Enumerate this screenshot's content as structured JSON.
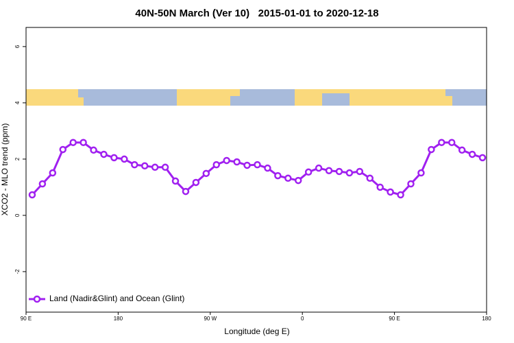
{
  "chart_data": {
    "type": "line",
    "title": "40N-50N March (Ver 10)   2015-01-01 to 2020-12-18",
    "xlabel": "Longitude (deg E)",
    "ylabel": "XCO2 - MLO trend (ppm)",
    "x": [
      96,
      106,
      116,
      126,
      136,
      146,
      156,
      166,
      176,
      186,
      196,
      206,
      216,
      226,
      236,
      246,
      256,
      266,
      276,
      286,
      296,
      306,
      316,
      326,
      336,
      346,
      356,
      366,
      376,
      386,
      396,
      406,
      416,
      426,
      436,
      446,
      456,
      466,
      476,
      486,
      496,
      506,
      516,
      526,
      536
    ],
    "series": [
      {
        "name": "Land (Nadir&Glint) and Ocean (Glint)",
        "color": "#a020f0",
        "values": [
          0.73,
          1.12,
          1.51,
          2.34,
          2.59,
          2.59,
          2.32,
          2.17,
          2.05,
          2.0,
          1.8,
          1.76,
          1.71,
          1.71,
          1.22,
          0.85,
          1.17,
          1.49,
          1.8,
          1.95,
          1.9,
          1.78,
          1.8,
          1.68,
          1.41,
          1.32,
          1.24,
          1.54,
          1.68,
          1.59,
          1.56,
          1.51,
          1.56,
          1.32,
          1.0,
          0.83,
          0.73,
          1.12,
          1.51,
          2.34,
          2.59,
          2.59,
          2.32,
          2.17,
          2.05
        ]
      }
    ],
    "xlim": [
      90,
      540
    ],
    "xticks": [
      {
        "value": 90,
        "label": "90 E"
      },
      {
        "value": 180,
        "label": "180"
      },
      {
        "value": 270,
        "label": "90 W"
      },
      {
        "value": 360,
        "label": "0"
      },
      {
        "value": 450,
        "label": "90 E"
      },
      {
        "value": 540,
        "label": "180"
      }
    ],
    "ylim": [
      -3.44,
      6.68
    ],
    "yticks": [
      -2,
      0,
      2,
      4,
      6
    ],
    "legend": "bottom-left"
  }
}
